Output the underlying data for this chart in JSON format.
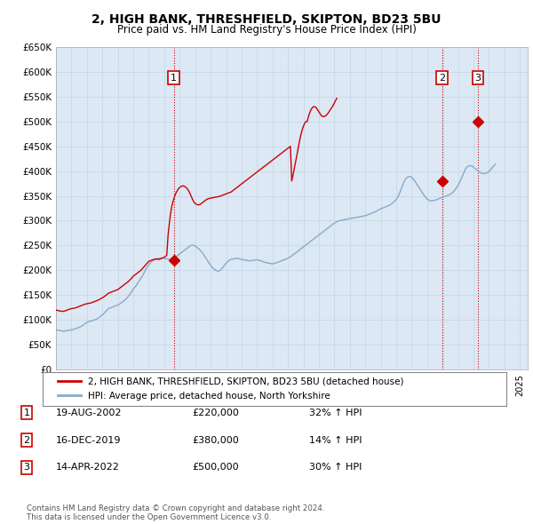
{
  "title": "2, HIGH BANK, THRESHFIELD, SKIPTON, BD23 5BU",
  "subtitle": "Price paid vs. HM Land Registry's House Price Index (HPI)",
  "ylim": [
    0,
    650000
  ],
  "yticks": [
    0,
    50000,
    100000,
    150000,
    200000,
    250000,
    300000,
    350000,
    400000,
    450000,
    500000,
    550000,
    600000,
    650000
  ],
  "xlim_start": 1995.0,
  "xlim_end": 2025.5,
  "sale_points": [
    {
      "year": 2002.62,
      "price": 220000,
      "label": "1"
    },
    {
      "year": 2019.96,
      "price": 380000,
      "label": "2"
    },
    {
      "year": 2022.29,
      "price": 500000,
      "label": "3"
    }
  ],
  "sale_info": [
    {
      "num": "1",
      "date": "19-AUG-2002",
      "price": "£220,000",
      "change": "32% ↑ HPI"
    },
    {
      "num": "2",
      "date": "16-DEC-2019",
      "price": "£380,000",
      "change": "14% ↑ HPI"
    },
    {
      "num": "3",
      "date": "14-APR-2022",
      "price": "£500,000",
      "change": "30% ↑ HPI"
    }
  ],
  "red_line_color": "#cc0000",
  "blue_line_color": "#88aacc",
  "grid_color": "#c8d8e8",
  "background_color": "#ffffff",
  "plot_bg_color": "#dce8f4",
  "vline_color": "#cc0000",
  "legend_label_red": "2, HIGH BANK, THRESHFIELD, SKIPTON, BD23 5BU (detached house)",
  "legend_label_blue": "HPI: Average price, detached house, North Yorkshire",
  "footer": "Contains HM Land Registry data © Crown copyright and database right 2024.\nThis data is licensed under the Open Government Licence v3.0.",
  "hpi_monthly": {
    "start_year": 1995.0,
    "step": 0.0833,
    "values": [
      80000,
      79500,
      79000,
      78500,
      78000,
      77500,
      77000,
      77500,
      78000,
      78500,
      79000,
      79500,
      80000,
      80500,
      81000,
      82000,
      83000,
      84000,
      85000,
      86000,
      87500,
      89000,
      91000,
      93000,
      95000,
      96000,
      97000,
      97500,
      98000,
      99000,
      100000,
      101000,
      102000,
      104000,
      106000,
      108000,
      110000,
      112000,
      115000,
      118000,
      121000,
      123000,
      124000,
      125000,
      126000,
      127000,
      128000,
      129000,
      130000,
      131000,
      133000,
      135000,
      137000,
      139000,
      141000,
      144000,
      147000,
      150000,
      154000,
      158000,
      162000,
      165000,
      168000,
      172000,
      176000,
      180000,
      184000,
      188000,
      193000,
      198000,
      203000,
      207000,
      211000,
      214000,
      217000,
      219000,
      221000,
      222000,
      223000,
      223500,
      224000,
      224500,
      225000,
      225000,
      224000,
      223500,
      223000,
      222500,
      222000,
      222000,
      223000,
      224000,
      225000,
      227000,
      229000,
      231000,
      233000,
      235000,
      237000,
      239000,
      241000,
      243000,
      245000,
      247000,
      249000,
      250000,
      251000,
      250000,
      249000,
      247000,
      245000,
      243000,
      240000,
      237000,
      234000,
      230000,
      226000,
      222000,
      218000,
      214000,
      210000,
      207000,
      204000,
      202000,
      200000,
      199000,
      198000,
      199000,
      201000,
      204000,
      207000,
      211000,
      214000,
      217000,
      219000,
      221000,
      222000,
      222500,
      223000,
      223500,
      224000,
      224000,
      223500,
      222500,
      222000,
      221500,
      221000,
      220500,
      220000,
      219500,
      219000,
      219000,
      219500,
      220000,
      220500,
      221000,
      221000,
      220500,
      220000,
      219000,
      218000,
      217000,
      216000,
      215500,
      215000,
      214500,
      214000,
      213500,
      213000,
      213500,
      214000,
      215000,
      216000,
      217000,
      218000,
      219000,
      220000,
      221000,
      222000,
      223000,
      224000,
      225500,
      227000,
      229000,
      231000,
      233000,
      235000,
      237000,
      239000,
      241000,
      243000,
      245000,
      247000,
      249000,
      251000,
      253000,
      255000,
      257000,
      259000,
      261000,
      263000,
      265000,
      267000,
      269000,
      271000,
      273000,
      275000,
      277000,
      279000,
      281000,
      283000,
      285000,
      287000,
      289000,
      291000,
      293000,
      295000,
      296500,
      298000,
      299000,
      300000,
      300500,
      301000,
      301500,
      302000,
      302500,
      303000,
      303500,
      304000,
      304500,
      305000,
      305500,
      306000,
      306500,
      307000,
      307500,
      308000,
      308500,
      309000,
      309500,
      310000,
      311000,
      312000,
      313000,
      314000,
      315000,
      316000,
      317000,
      318000,
      319500,
      321000,
      322500,
      324000,
      325000,
      326000,
      327000,
      328000,
      329000,
      330000,
      331500,
      333000,
      335000,
      337000,
      339500,
      342000,
      346000,
      351000,
      357000,
      364000,
      371000,
      378000,
      382000,
      386000,
      388000,
      389000,
      389000,
      388000,
      385000,
      382000,
      378000,
      374000,
      370000,
      366000,
      362000,
      358000,
      354000,
      350000,
      347000,
      344000,
      342000,
      341000,
      340000,
      340000,
      340500,
      341000,
      342000,
      343000,
      344000,
      345000,
      346000,
      347000,
      348000,
      349000,
      350000,
      351000,
      352000,
      353000,
      355000,
      357000,
      360000,
      363000,
      367000,
      371000,
      376000,
      381000,
      387000,
      393000,
      399000,
      405000,
      408000,
      410000,
      411000,
      411000,
      410000,
      408000,
      406000,
      404000,
      402000,
      400000,
      398000,
      396000,
      395000,
      395000,
      395500,
      396000,
      397000,
      399000,
      402000,
      405000,
      408000,
      411000,
      414000
    ]
  },
  "red_monthly": {
    "start_year": 1995.0,
    "step": 0.0833,
    "values": [
      120000,
      119000,
      118500,
      118000,
      117500,
      117000,
      117500,
      118000,
      119000,
      120000,
      121000,
      122000,
      122500,
      123000,
      123500,
      124000,
      125000,
      126000,
      127000,
      128000,
      129000,
      130000,
      131000,
      132000,
      132500,
      133000,
      133500,
      134000,
      135000,
      136000,
      137000,
      138000,
      139000,
      140000,
      141500,
      143000,
      144500,
      146000,
      148000,
      150000,
      152000,
      154000,
      155000,
      156000,
      157000,
      158000,
      159000,
      160000,
      161000,
      163000,
      165000,
      167000,
      169000,
      171000,
      173000,
      175000,
      177000,
      179500,
      182000,
      185000,
      188000,
      190000,
      192000,
      194000,
      196000,
      198000,
      200000,
      203000,
      206000,
      209000,
      212000,
      215000,
      218000,
      219000,
      220000,
      221000,
      222000,
      222500,
      223000,
      222000,
      222000,
      223000,
      224000,
      225000,
      226000,
      228000,
      230000,
      270000,
      295000,
      315000,
      330000,
      340000,
      348000,
      355000,
      360000,
      364000,
      367000,
      369000,
      370000,
      370000,
      369000,
      367000,
      364000,
      360000,
      355000,
      349000,
      343000,
      338000,
      335000,
      333000,
      332000,
      332000,
      333000,
      335000,
      337000,
      339000,
      341000,
      343000,
      344000,
      345000,
      345500,
      346000,
      346500,
      347000,
      347500,
      348000,
      348500,
      349000,
      350000,
      351000,
      352000,
      353000,
      354000,
      355000,
      356000,
      357000,
      358000,
      360000,
      362000,
      364000,
      366000,
      368000,
      370000,
      372000,
      374000,
      376000,
      378000,
      380000,
      382000,
      384000,
      386000,
      388000,
      390000,
      392000,
      394000,
      396000,
      398000,
      400000,
      402000,
      404000,
      406000,
      408000,
      410000,
      412000,
      414000,
      416000,
      418000,
      420000,
      422000,
      424000,
      426000,
      428000,
      430000,
      432000,
      434000,
      436000,
      438000,
      440000,
      442000,
      444000,
      446000,
      448000,
      450000,
      380000,
      392000,
      405000,
      418000,
      432000,
      446000,
      460000,
      472000,
      482000,
      490000,
      496000,
      500000,
      500000,
      510000,
      518000,
      524000,
      528000,
      530000,
      530000,
      528000,
      524000,
      520000,
      516000,
      512000,
      510000,
      510000,
      511000,
      513000,
      516000,
      520000,
      524000,
      528000,
      532000,
      537000,
      542000,
      547000
    ]
  }
}
